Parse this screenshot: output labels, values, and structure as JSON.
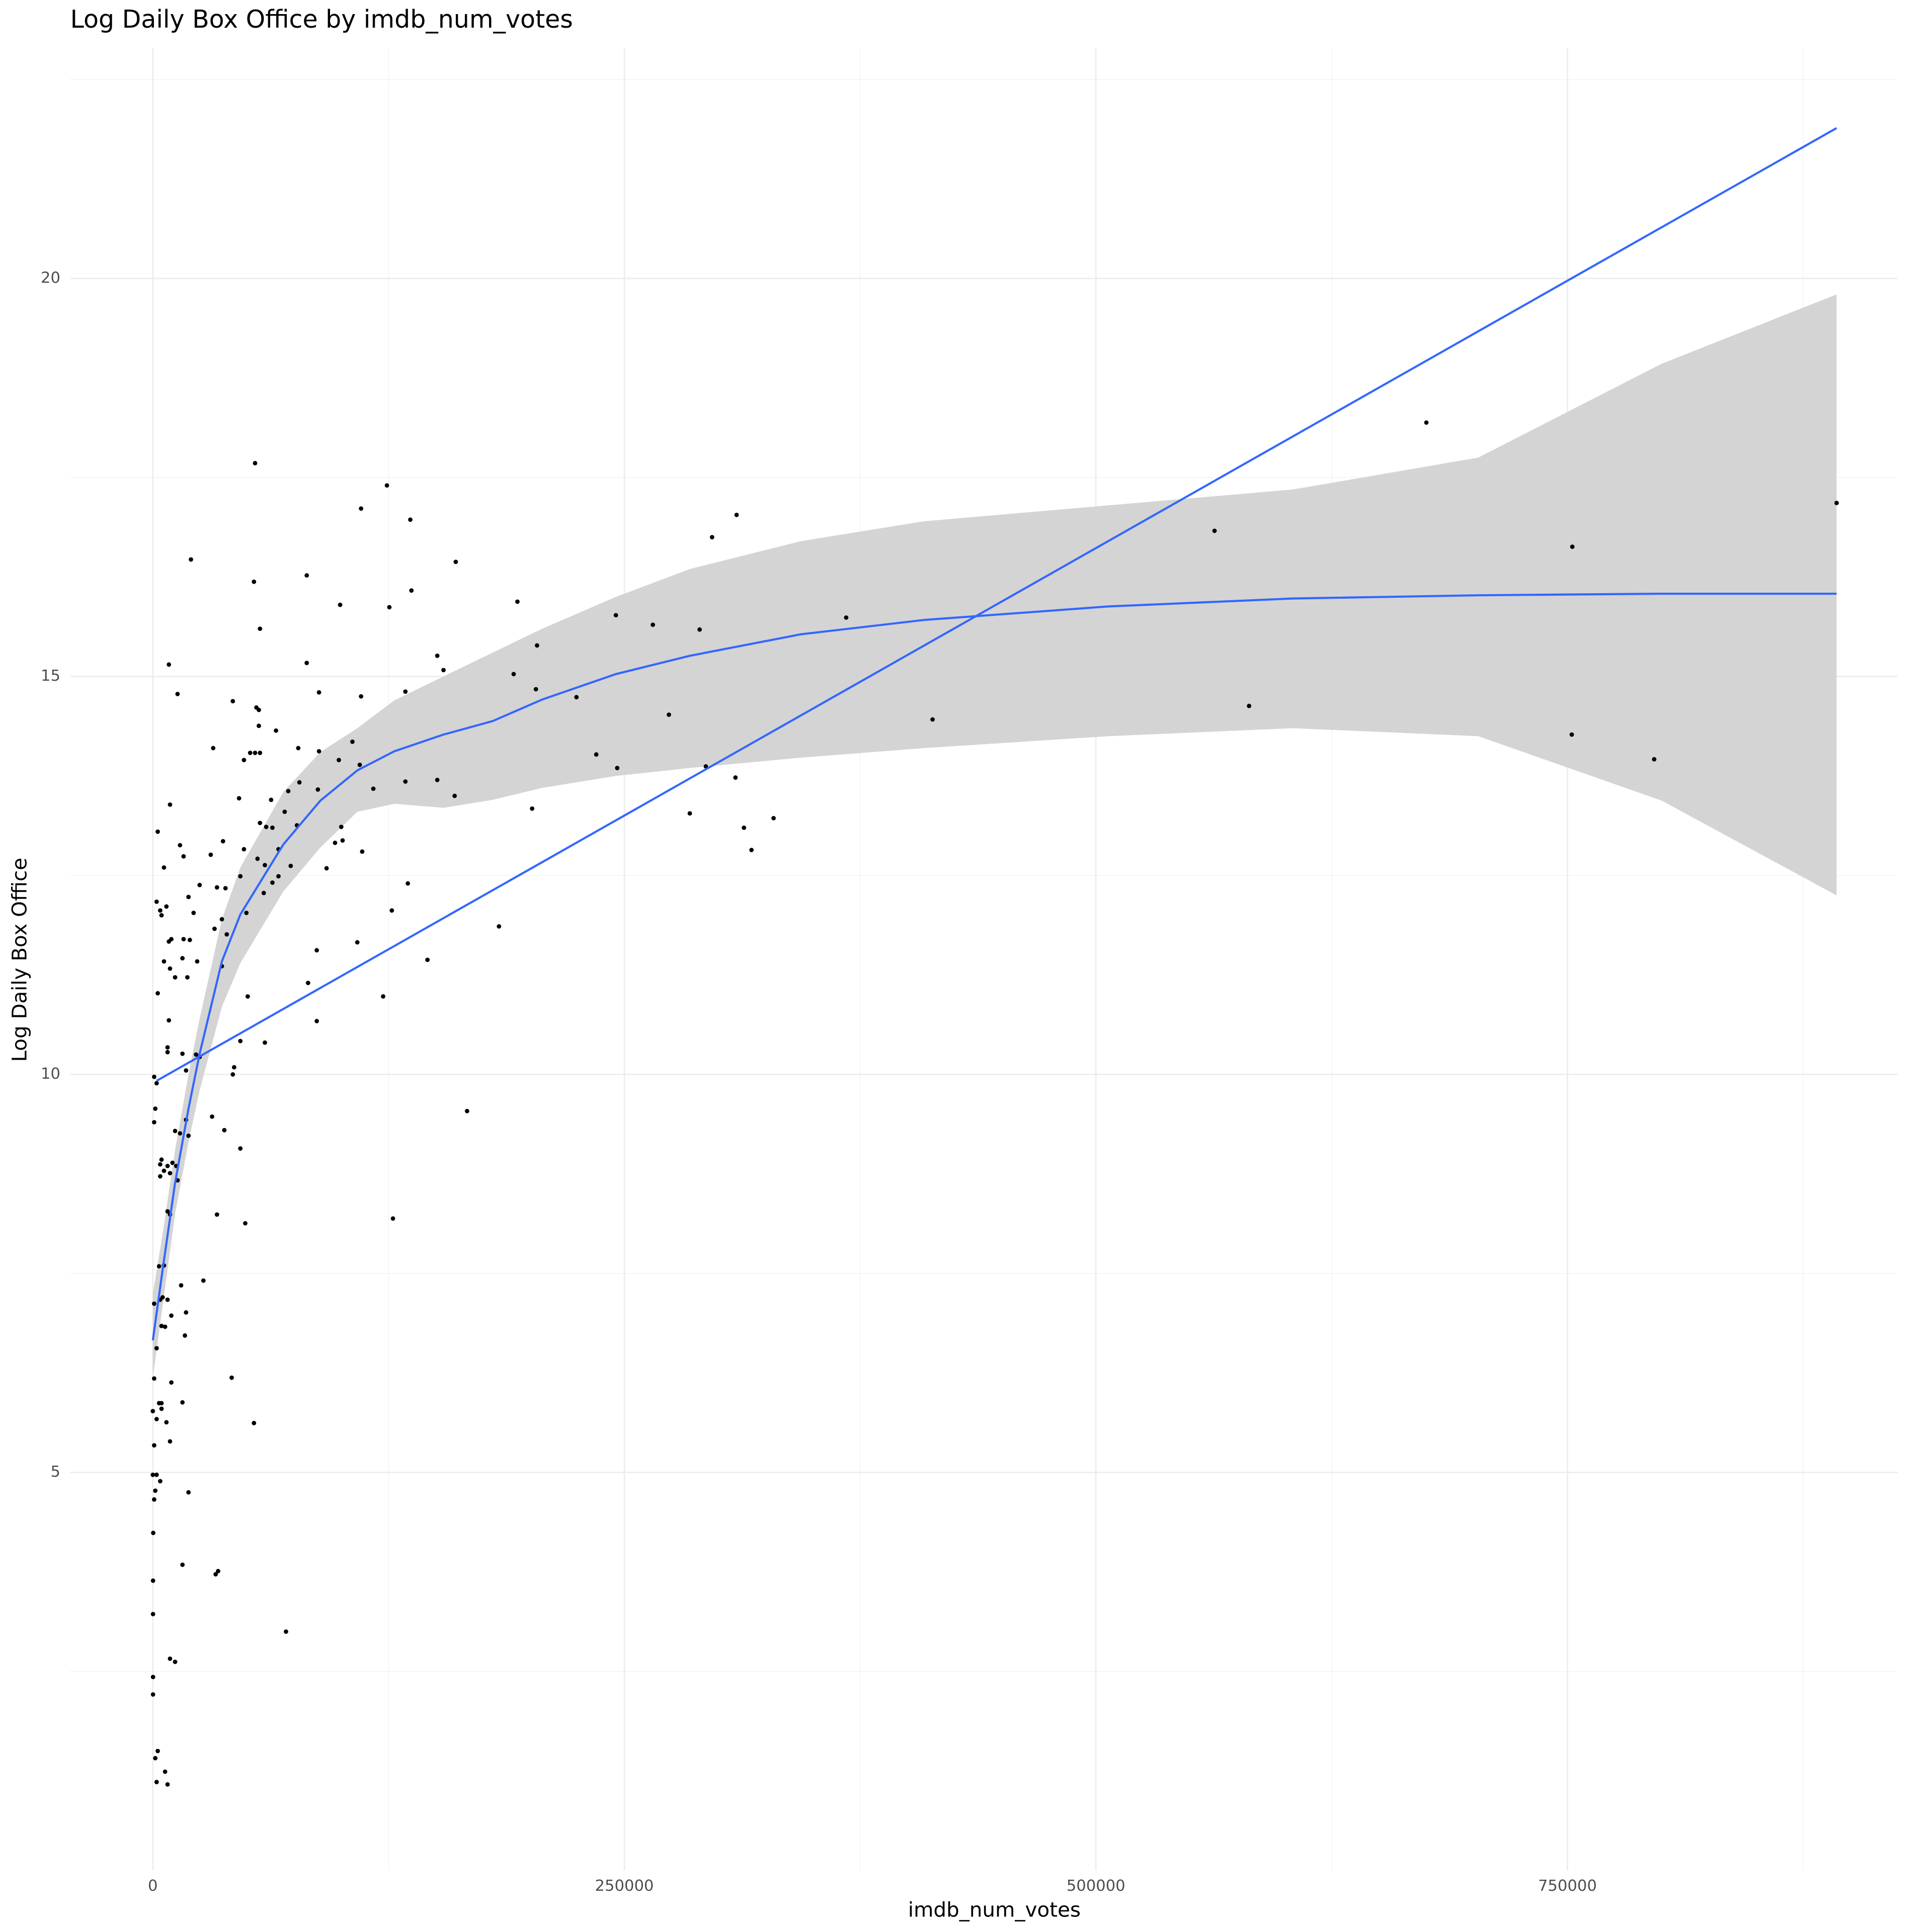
{
  "chart_data": {
    "type": "scatter",
    "title": "Log Daily Box Office by imdb_num_votes",
    "x_label": "imdb_num_votes",
    "y_label": "Log Daily Box Office",
    "xlim": [
      -43800,
      925000
    ],
    "ylim": [
      0,
      22.9
    ],
    "xticks": [
      0,
      250000,
      500000,
      750000
    ],
    "yticks": [
      5,
      10,
      15,
      20
    ],
    "x_minor_ticks": [
      125000,
      375000,
      625000,
      875000
    ],
    "y_minor_ticks": [
      2.5,
      7.5,
      12.5,
      17.5,
      22.5
    ],
    "grid": true,
    "color": "#000000",
    "x": [
      54200,
      124100,
      136500,
      309500,
      110400,
      20200,
      160600,
      296500,
      675200,
      892700,
      562900,
      752600,
      53600,
      81600,
      137100,
      193300,
      99300,
      125400,
      245500,
      367600,
      56800,
      265100,
      289900,
      203700,
      8500,
      81600,
      150800,
      154100,
      191300,
      13100,
      88100,
      110400,
      133900,
      203100,
      224600,
      42400,
      54900,
      56200,
      273600,
      581200,
      413400,
      65300,
      56200,
      105800,
      32000,
      54200,
      51600,
      56800,
      88100,
      77100,
      235100,
      752300,
      796000,
      48300,
      98600,
      109700,
      246200,
      293200,
      308900,
      116900,
      133900,
      150800,
      77700,
      87500,
      71800,
      45700,
      160000,
      62700,
      9100,
      201100,
      69900,
      284700,
      56800,
      329100,
      99900,
      76400,
      313400,
      2600,
      60100,
      63400,
      37200,
      96600,
      100600,
      14400,
      48300,
      66600,
      111000,
      317400,
      30700,
      16300,
      55500,
      59400,
      73100,
      92100,
      5900,
      46400,
      66600,
      63400,
      135200,
      24800,
      34000,
      38500,
      58800,
      18900,
      2000,
      7200,
      3900,
      21600,
      126700,
      49600,
      4600,
      36600,
      32700,
      183500,
      39200,
      16300,
      9800,
      8500,
      108400,
      19600,
      86900,
      5900,
      15700,
      145600,
      23500,
      9100,
      36600,
      18300,
      11800,
      82300,
      2600,
      50300,
      122100,
      8500,
      86900,
      59400,
      46400,
      7800,
      7800,
      15700,
      22900,
      24800,
      43100,
      17600,
      42400,
      700,
      2000,
      1300,
      17600,
      31400,
      166600,
      700,
      37900,
      11800,
      14400,
      18900,
      46400,
      4600,
      3900,
      7800,
      10400,
      12400,
      5900,
      3900,
      9100,
      13100,
      7800,
      9100,
      34000,
      127300,
      49000,
      3300,
      5900,
      26800,
      15000,
      3900,
      700,
      5200,
      7800,
      17600,
      9800,
      4600,
      6500,
      17000,
      2000,
      700,
      9800,
      41800,
      15700,
      4600,
      4600,
      0,
      3300,
      7200,
      53600,
      2000,
      9100,
      700,
      0,
      2000,
      3900,
      1300,
      18900,
      700,
      200,
      15700,
      34600,
      33300,
      100,
      100,
      70600,
      9100,
      11800,
      100,
      100,
      2600,
      1300,
      6500,
      2000,
      7800
    ],
    "values": [
      17.68,
      17.4,
      16.97,
      17.03,
      17.11,
      16.47,
      16.44,
      16.75,
      18.19,
      17.18,
      16.83,
      16.63,
      16.19,
      16.27,
      16.08,
      15.94,
      15.9,
      15.87,
      15.77,
      15.74,
      15.6,
      15.65,
      15.59,
      15.39,
      15.15,
      15.17,
      15.26,
      15.08,
      15.03,
      14.78,
      14.8,
      14.75,
      14.81,
      14.84,
      14.74,
      14.69,
      14.61,
      14.58,
      14.52,
      14.63,
      14.46,
      14.32,
      14.38,
      14.18,
      14.1,
      14.04,
      14.04,
      14.04,
      14.06,
      14.1,
      14.02,
      14.27,
      13.96,
      13.95,
      13.95,
      13.89,
      13.85,
      13.87,
      13.73,
      13.59,
      13.68,
      13.7,
      13.67,
      13.58,
      13.56,
      13.47,
      13.5,
      13.45,
      13.39,
      13.34,
      13.3,
      13.28,
      13.16,
      13.22,
      13.11,
      13.13,
      13.1,
      13.05,
      13.11,
      13.1,
      12.93,
      12.91,
      12.94,
      12.88,
      12.83,
      12.83,
      12.8,
      12.82,
      12.76,
      12.74,
      12.71,
      12.63,
      12.62,
      12.59,
      12.6,
      12.49,
      12.49,
      12.41,
      12.4,
      12.38,
      12.35,
      12.34,
      12.28,
      12.23,
      12.17,
      12.11,
      12.06,
      12.03,
      12.06,
      12.03,
      12.0,
      11.95,
      11.83,
      11.86,
      11.76,
      11.7,
      11.7,
      11.67,
      11.66,
      11.69,
      11.56,
      11.42,
      11.46,
      11.44,
      11.42,
      11.33,
      11.36,
      11.22,
      11.22,
      11.15,
      11.02,
      10.98,
      10.98,
      10.68,
      10.67,
      10.4,
      10.42,
      10.34,
      10.28,
      10.26,
      10.25,
      10.22,
      10.09,
      10.05,
      10.0,
      9.97,
      9.89,
      9.57,
      9.43,
      9.47,
      9.54,
      9.4,
      9.3,
      9.29,
      9.26,
      9.23,
      9.07,
      8.93,
      8.87,
      8.85,
      8.89,
      8.85,
      8.79,
      8.72,
      8.76,
      8.67,
      8.28,
      8.24,
      8.24,
      8.19,
      8.13,
      7.59,
      7.6,
      7.41,
      7.35,
      7.17,
      7.12,
      7.2,
      7.17,
      7.01,
      6.97,
      6.84,
      6.83,
      6.72,
      6.56,
      6.18,
      6.13,
      6.19,
      5.88,
      5.87,
      5.8,
      5.77,
      5.87,
      5.63,
      5.62,
      5.67,
      5.39,
      5.34,
      4.97,
      4.97,
      4.89,
      4.77,
      4.75,
      4.66,
      4.24,
      3.84,
      3.76,
      3.72,
      3.64,
      3.22,
      3.0,
      2.66,
      2.62,
      2.43,
      2.21,
      1.5,
      1.41,
      1.24,
      1.11,
      1.08
    ],
    "layers": [
      {
        "type": "band",
        "color": "#d4d4d4",
        "x": [
          0,
          5200,
          11800,
          18900,
          24800,
          36600,
          46400,
          69200,
          88800,
          108400,
          128000,
          154100,
          180200,
          206400,
          245500,
          284700,
          343600,
          408900,
          506700,
          604700,
          702700,
          800000,
          892700
        ],
        "lower": [
          6.19,
          7.1,
          8.25,
          9.15,
          9.8,
          10.85,
          11.4,
          12.3,
          12.85,
          13.3,
          13.4,
          13.35,
          13.45,
          13.6,
          13.75,
          13.85,
          13.98,
          14.1,
          14.25,
          14.35,
          14.25,
          13.44,
          12.25
        ],
        "upper": [
          7.25,
          8.0,
          9.05,
          10.0,
          10.7,
          11.95,
          12.6,
          13.55,
          14.05,
          14.35,
          14.7,
          15.0,
          15.3,
          15.6,
          16.0,
          16.35,
          16.7,
          16.95,
          17.15,
          17.35,
          17.75,
          18.93,
          19.8
        ]
      },
      {
        "type": "line",
        "color": "#3366ff",
        "x": [
          0,
          5200,
          11800,
          18900,
          24800,
          36600,
          46400,
          69200,
          88800,
          108400,
          128000,
          154100,
          180200,
          206400,
          245500,
          284700,
          343600,
          408900,
          506700,
          604700,
          702700,
          800000,
          892700
        ],
        "values": [
          6.66,
          7.55,
          8.64,
          9.57,
          10.26,
          11.42,
          12.01,
          12.89,
          13.44,
          13.82,
          14.06,
          14.27,
          14.44,
          14.71,
          15.03,
          15.26,
          15.53,
          15.71,
          15.88,
          15.98,
          16.02,
          16.04,
          16.04
        ]
      },
      {
        "type": "line",
        "color": "#3366ff",
        "x": [
          2000,
          892700
        ],
        "values": [
          9.92,
          21.89
        ]
      }
    ]
  }
}
